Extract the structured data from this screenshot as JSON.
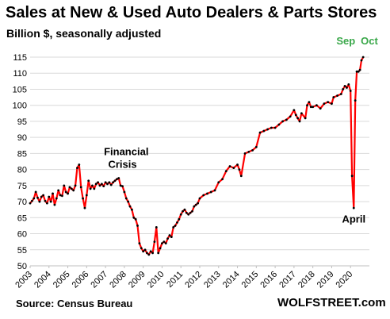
{
  "chart_data": {
    "type": "line",
    "title": "Sales at New & Used Auto Dealers & Parts Stores",
    "subtitle": "Billion $, seasonally adjusted",
    "ylim": [
      50,
      115
    ],
    "yticks": [
      50,
      55,
      60,
      65,
      70,
      75,
      80,
      85,
      90,
      95,
      100,
      105,
      110,
      115
    ],
    "xlim": [
      2003,
      2021
    ],
    "xticks": [
      "2003",
      "2004",
      "2005",
      "2006",
      "2007",
      "2008",
      "2009",
      "2010",
      "2011",
      "2012",
      "2013",
      "2014",
      "2015",
      "2016",
      "2017",
      "2018",
      "2019",
      "2020"
    ],
    "grid": true,
    "series": [
      {
        "color": "#ff0000",
        "marker_color": "#000000",
        "points": [
          [
            2003.0,
            69.5
          ],
          [
            2003.1,
            70.2
          ],
          [
            2003.2,
            71.0
          ],
          [
            2003.3,
            73.0
          ],
          [
            2003.4,
            71.2
          ],
          [
            2003.5,
            70.0
          ],
          [
            2003.6,
            71.5
          ],
          [
            2003.7,
            72.0
          ],
          [
            2003.8,
            70.2
          ],
          [
            2003.9,
            69.5
          ],
          [
            2004.0,
            71.5
          ],
          [
            2004.1,
            70.0
          ],
          [
            2004.2,
            72.5
          ],
          [
            2004.3,
            69.0
          ],
          [
            2004.4,
            71.0
          ],
          [
            2004.5,
            73.5
          ],
          [
            2004.6,
            72.0
          ],
          [
            2004.7,
            71.8
          ],
          [
            2004.8,
            75.0
          ],
          [
            2004.9,
            73.0
          ],
          [
            2005.0,
            72.5
          ],
          [
            2005.1,
            74.5
          ],
          [
            2005.2,
            74.0
          ],
          [
            2005.3,
            73.5
          ],
          [
            2005.4,
            75.0
          ],
          [
            2005.5,
            80.5
          ],
          [
            2005.6,
            81.5
          ],
          [
            2005.7,
            74.5
          ],
          [
            2005.8,
            71.0
          ],
          [
            2005.9,
            68.0
          ],
          [
            2006.0,
            72.0
          ],
          [
            2006.1,
            76.5
          ],
          [
            2006.2,
            74.0
          ],
          [
            2006.3,
            75.0
          ],
          [
            2006.4,
            74.0
          ],
          [
            2006.5,
            75.5
          ],
          [
            2006.6,
            76.0
          ],
          [
            2006.7,
            75.0
          ],
          [
            2006.8,
            75.5
          ],
          [
            2006.9,
            74.8
          ],
          [
            2007.0,
            76.0
          ],
          [
            2007.1,
            75.5
          ],
          [
            2007.2,
            76.0
          ],
          [
            2007.3,
            75.2
          ],
          [
            2007.4,
            76.0
          ],
          [
            2007.5,
            76.5
          ],
          [
            2007.6,
            77.0
          ],
          [
            2007.7,
            77.3
          ],
          [
            2007.8,
            75.0
          ],
          [
            2007.9,
            74.8
          ],
          [
            2008.0,
            73.0
          ],
          [
            2008.1,
            71.0
          ],
          [
            2008.2,
            70.0
          ],
          [
            2008.3,
            68.5
          ],
          [
            2008.4,
            67.5
          ],
          [
            2008.5,
            65.0
          ],
          [
            2008.6,
            64.5
          ],
          [
            2008.7,
            62.5
          ],
          [
            2008.8,
            57.0
          ],
          [
            2008.9,
            55.5
          ],
          [
            2009.0,
            54.5
          ],
          [
            2009.1,
            55.0
          ],
          [
            2009.2,
            54.0
          ],
          [
            2009.3,
            53.5
          ],
          [
            2009.4,
            54.5
          ],
          [
            2009.5,
            54.0
          ],
          [
            2009.6,
            57.5
          ],
          [
            2009.7,
            62.0
          ],
          [
            2009.8,
            54.0
          ],
          [
            2009.9,
            55.5
          ],
          [
            2010.0,
            57.0
          ],
          [
            2010.1,
            57.5
          ],
          [
            2010.2,
            57.0
          ],
          [
            2010.3,
            58.5
          ],
          [
            2010.4,
            59.5
          ],
          [
            2010.5,
            59.0
          ],
          [
            2010.6,
            62.0
          ],
          [
            2010.7,
            62.5
          ],
          [
            2010.8,
            63.5
          ],
          [
            2010.9,
            64.5
          ],
          [
            2011.0,
            66.0
          ],
          [
            2011.1,
            67.0
          ],
          [
            2011.2,
            67.5
          ],
          [
            2011.3,
            66.5
          ],
          [
            2011.4,
            66.0
          ],
          [
            2011.5,
            66.5
          ],
          [
            2011.6,
            67.0
          ],
          [
            2011.7,
            68.5
          ],
          [
            2011.8,
            69.0
          ],
          [
            2011.9,
            69.5
          ],
          [
            2012.0,
            71.0
          ],
          [
            2012.2,
            72.0
          ],
          [
            2012.4,
            72.5
          ],
          [
            2012.6,
            73.0
          ],
          [
            2012.8,
            73.5
          ],
          [
            2013.0,
            76.0
          ],
          [
            2013.2,
            77.0
          ],
          [
            2013.4,
            79.5
          ],
          [
            2013.6,
            81.0
          ],
          [
            2013.8,
            80.5
          ],
          [
            2014.0,
            81.5
          ],
          [
            2014.1,
            80.0
          ],
          [
            2014.2,
            78.0
          ],
          [
            2014.4,
            85.0
          ],
          [
            2014.6,
            85.5
          ],
          [
            2014.8,
            86.0
          ],
          [
            2015.0,
            87.0
          ],
          [
            2015.2,
            91.5
          ],
          [
            2015.4,
            92.0
          ],
          [
            2015.6,
            92.5
          ],
          [
            2015.8,
            93.0
          ],
          [
            2016.0,
            93.0
          ],
          [
            2016.2,
            94.0
          ],
          [
            2016.4,
            95.0
          ],
          [
            2016.6,
            95.5
          ],
          [
            2016.8,
            96.5
          ],
          [
            2017.0,
            98.5
          ],
          [
            2017.1,
            97.0
          ],
          [
            2017.2,
            96.0
          ],
          [
            2017.3,
            95.0
          ],
          [
            2017.4,
            97.5
          ],
          [
            2017.6,
            96.0
          ],
          [
            2017.7,
            100.0
          ],
          [
            2017.8,
            101.0
          ],
          [
            2017.9,
            99.5
          ],
          [
            2018.0,
            99.5
          ],
          [
            2018.2,
            100.0
          ],
          [
            2018.4,
            99.0
          ],
          [
            2018.6,
            100.5
          ],
          [
            2018.8,
            101.0
          ],
          [
            2019.0,
            100.5
          ],
          [
            2019.1,
            102.5
          ],
          [
            2019.3,
            103.0
          ],
          [
            2019.5,
            103.5
          ],
          [
            2019.6,
            105.0
          ],
          [
            2019.7,
            106.0
          ],
          [
            2019.8,
            105.5
          ],
          [
            2019.9,
            106.5
          ],
          [
            2020.0,
            104.5
          ],
          [
            2020.08,
            78.0
          ],
          [
            2020.17,
            68.0
          ],
          [
            2020.25,
            101.5
          ],
          [
            2020.33,
            110.5
          ],
          [
            2020.42,
            110.5
          ],
          [
            2020.5,
            111.0
          ],
          [
            2020.58,
            114.0
          ],
          [
            2020.67,
            115.0
          ]
        ]
      }
    ],
    "annotations": [
      {
        "text": "Financial",
        "x": 2008.1,
        "y": 84.5,
        "color": "#000000"
      },
      {
        "text": "Crisis",
        "x": 2007.9,
        "y": 80.5,
        "color": "#000000"
      },
      {
        "text": "April",
        "x": 2020.17,
        "y": 63.5,
        "color": "#000000"
      },
      {
        "text": "Sep",
        "x": 2019.75,
        "y": 119.0,
        "color": "#3aa84a"
      },
      {
        "text": "Oct",
        "x": 2021.0,
        "y": 119.0,
        "color": "#3aa84a"
      }
    ]
  },
  "footer": {
    "source": "Source: Census Bureau",
    "brand": "WOLFSTREET.com"
  }
}
